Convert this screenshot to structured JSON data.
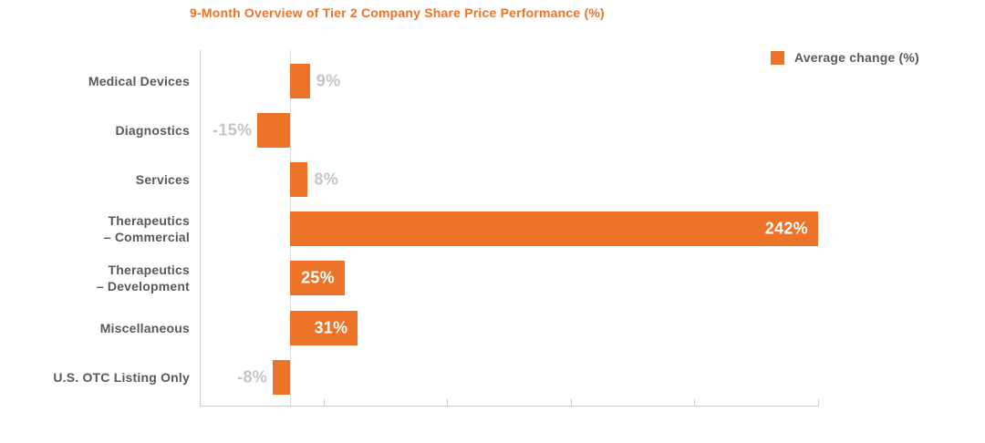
{
  "title": {
    "text": "9-Month Overview of Tier 2 Company Share Price Performance (%)",
    "color": "#ED7328"
  },
  "legend": {
    "label": "Average change (%)",
    "swatch_color": "#ED7328",
    "text_color": "#58595B"
  },
  "colors": {
    "bar": "#ED7328",
    "category_label": "#58595B",
    "value_label_outside": "#C3C5C7",
    "value_label_inside": "#FFFFFF",
    "axis_line": "#C9CBCD",
    "zero_line": "#D8DADC",
    "background": "#FFFFFF"
  },
  "chart_data": {
    "type": "bar",
    "orientation": "horizontal",
    "title": "9-Month Overview of Tier 2 Company Share Price Performance (%)",
    "series_name": "Average change (%)",
    "categories": [
      "Medical Devices",
      "Diagnostics",
      "Services",
      "Therapeutics – Commercial",
      "Therapeutics – Development",
      "Miscellaneous",
      "U.S. OTC Listing Only"
    ],
    "category_label_lines": [
      [
        "Medical Devices"
      ],
      [
        "Diagnostics"
      ],
      [
        "Services"
      ],
      [
        "Therapeutics",
        "– Commercial"
      ],
      [
        "Therapeutics",
        "– Development"
      ],
      [
        "Miscellaneous"
      ],
      [
        "U.S. OTC Listing Only"
      ]
    ],
    "values": [
      9,
      -15,
      8,
      242,
      25,
      31,
      -8
    ],
    "value_labels": [
      "9%",
      "-15%",
      "8%",
      "242%",
      "25%",
      "31%",
      "-8%"
    ],
    "xlabel": "",
    "ylabel": "",
    "xlim": [
      -41.5,
      242
    ],
    "x_axis": {
      "tick_labels_shown": false,
      "unlabeled_divisions": 5
    },
    "grid": false,
    "legend_position": "top-right"
  }
}
